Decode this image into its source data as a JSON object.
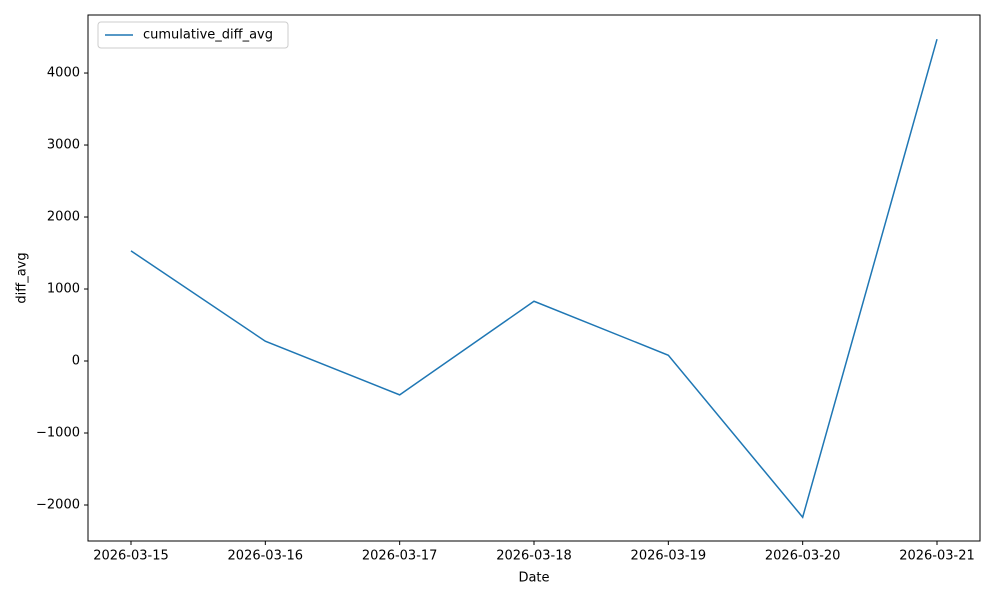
{
  "chart_data": {
    "type": "line",
    "x_label": "Date",
    "y_label": "diff_avg",
    "categories": [
      "2026-03-15",
      "2026-03-16",
      "2026-03-17",
      "2026-03-18",
      "2026-03-19",
      "2026-03-20",
      "2026-03-21"
    ],
    "series": [
      {
        "name": "cumulative_diff_avg",
        "color": "#1f77b4",
        "values": [
          1530,
          275,
          -470,
          830,
          80,
          -2170,
          4470
        ]
      }
    ],
    "ylim": [
      -2500,
      4806
    ],
    "yticks": [
      {
        "value": -2000,
        "label": "−2000"
      },
      {
        "value": -1000,
        "label": "−1000"
      },
      0,
      1000,
      2000,
      3000,
      4000
    ],
    "grid": false,
    "legend": "upper-left"
  }
}
